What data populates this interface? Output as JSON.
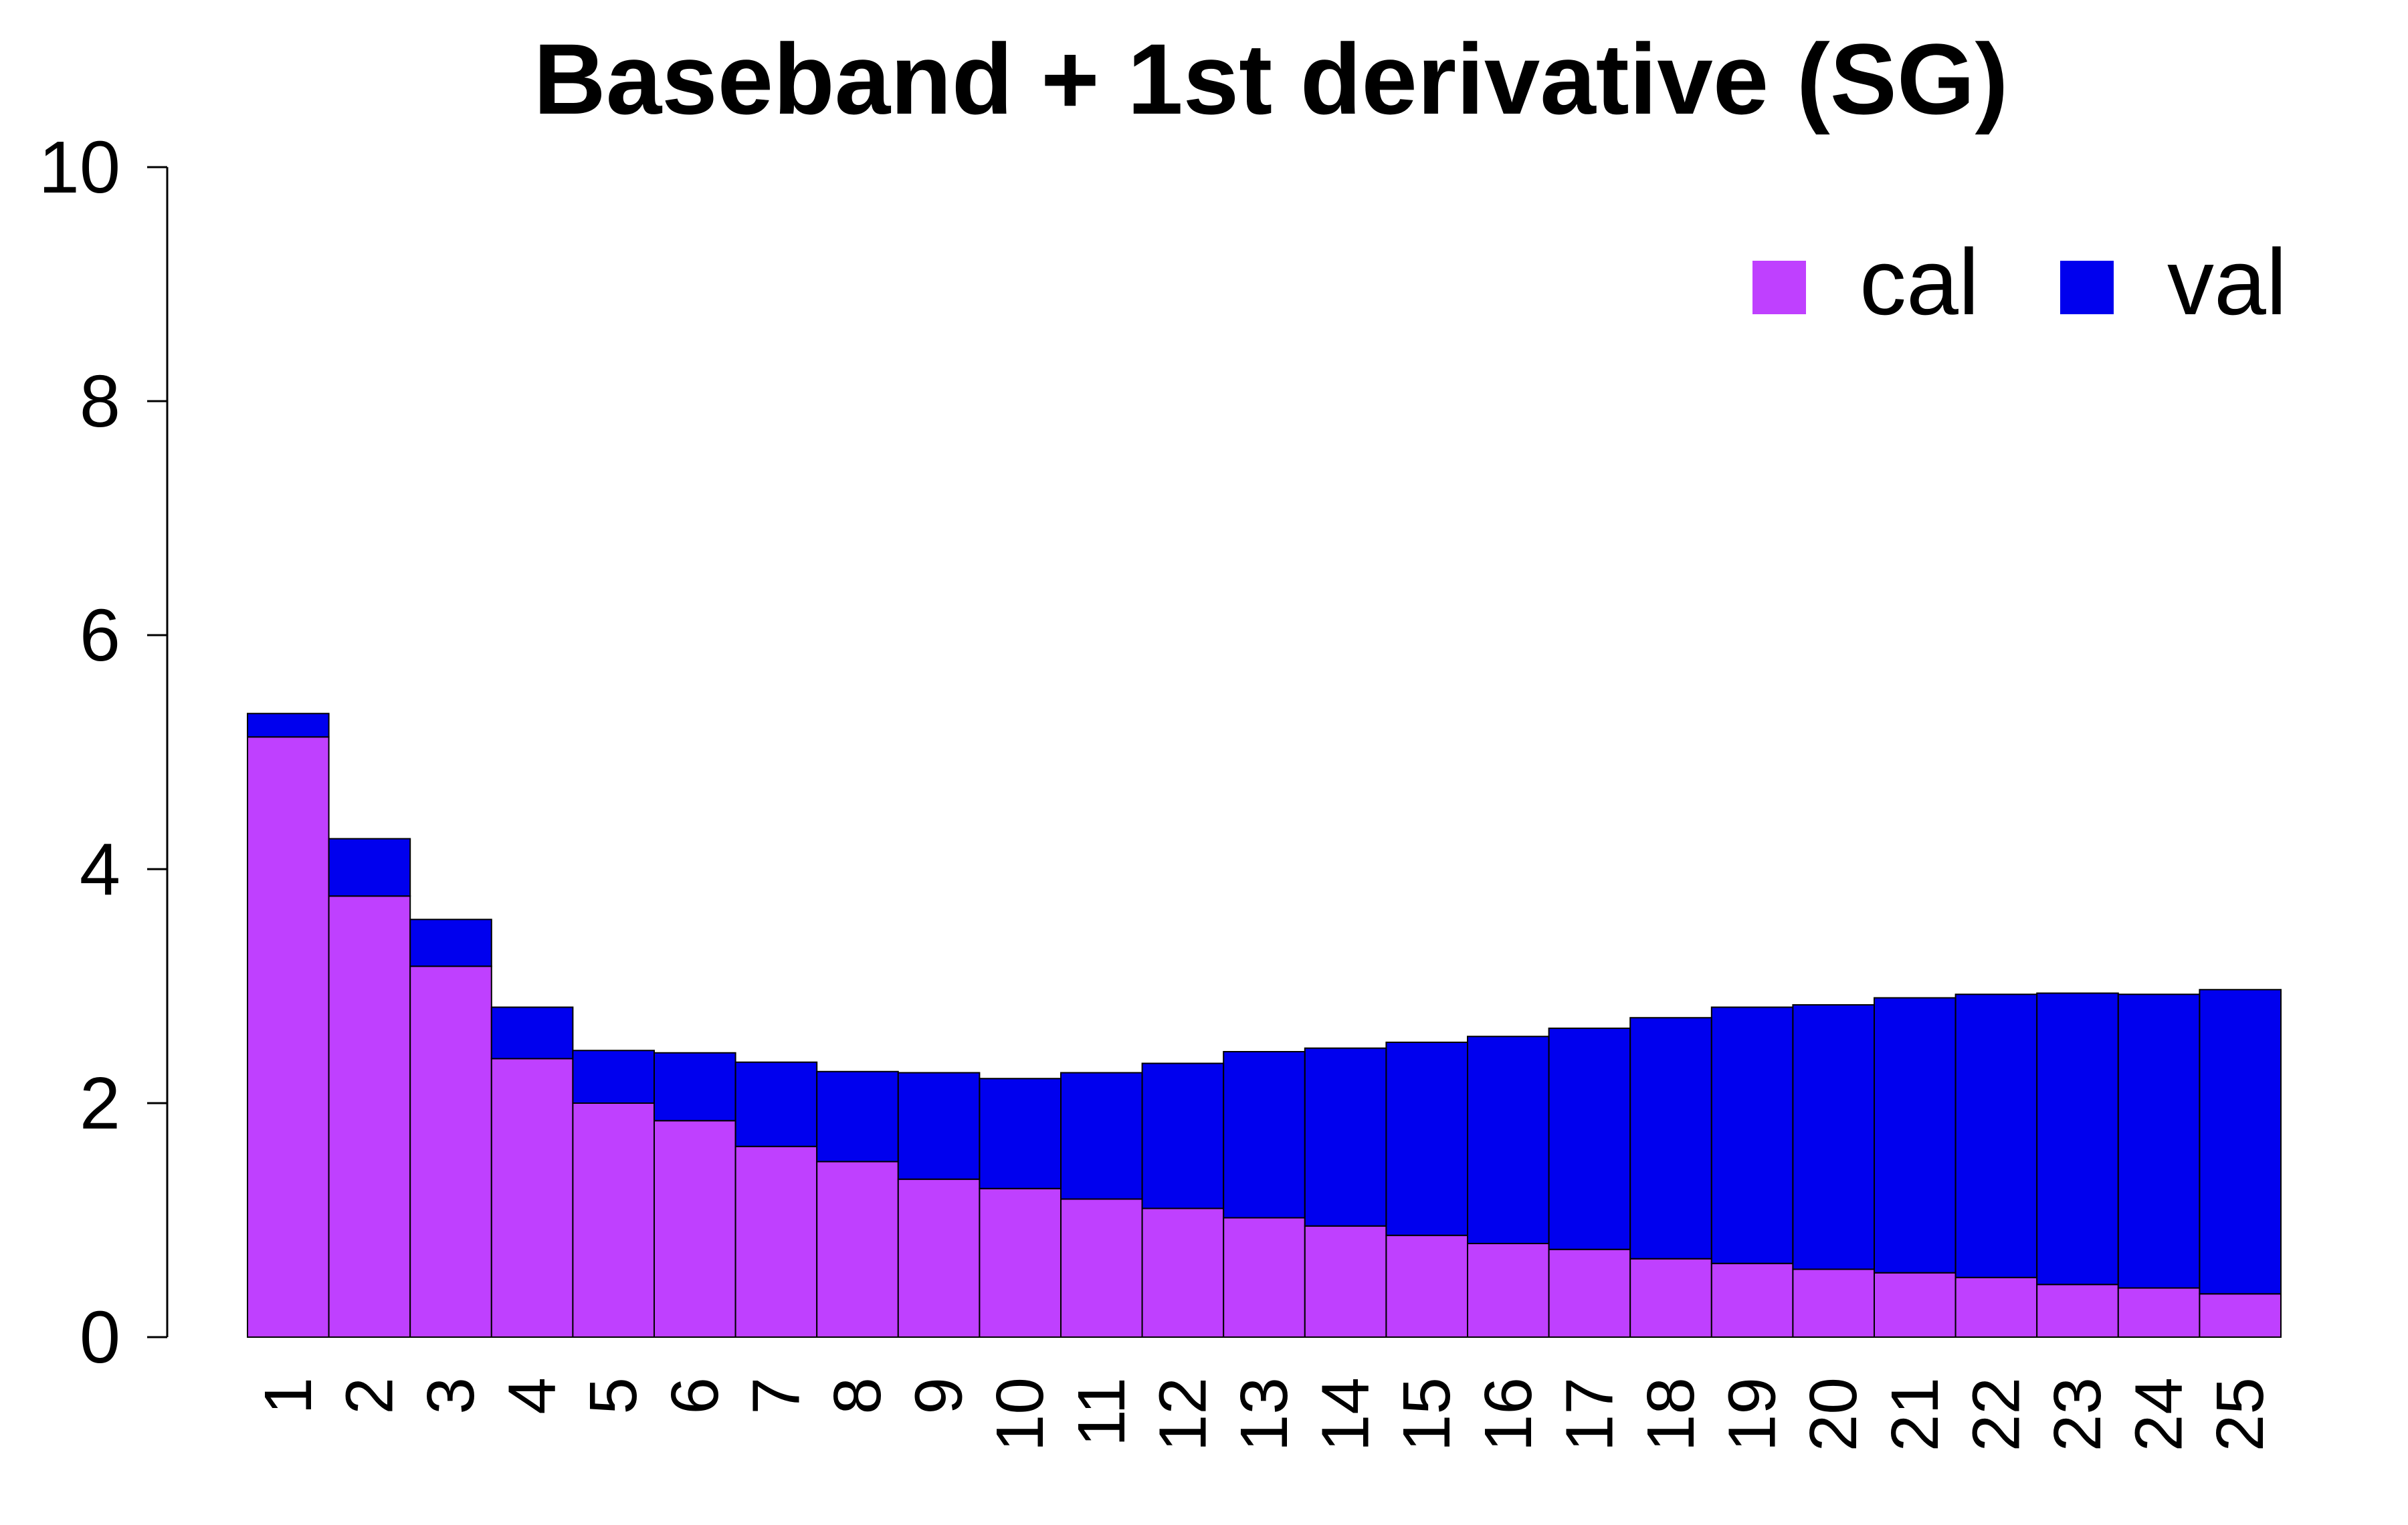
{
  "chart_data": {
    "type": "bar",
    "stacked": true,
    "title": "Baseband + 1st derivative (SG)",
    "xlabel": "",
    "ylabel": "",
    "ylim": [
      0,
      10
    ],
    "yticks": [
      "0",
      "2",
      "4",
      "6",
      "8",
      "10"
    ],
    "categories": [
      "1",
      "2",
      "3",
      "4",
      "5",
      "6",
      "7",
      "8",
      "9",
      "10",
      "11",
      "12",
      "13",
      "14",
      "15",
      "16",
      "17",
      "18",
      "19",
      "20",
      "21",
      "22",
      "23",
      "24",
      "25"
    ],
    "series": [
      {
        "name": "cal",
        "color": "#BF40FF",
        "values": [
          5.13,
          3.77,
          3.17,
          2.38,
          2.0,
          1.85,
          1.63,
          1.5,
          1.35,
          1.27,
          1.18,
          1.1,
          1.02,
          0.95,
          0.87,
          0.8,
          0.75,
          0.67,
          0.63,
          0.58,
          0.55,
          0.51,
          0.45,
          0.42,
          0.37
        ]
      },
      {
        "name": "val",
        "color": "#0000EE",
        "values": [
          0.2,
          0.49,
          0.4,
          0.44,
          0.45,
          0.58,
          0.72,
          0.77,
          0.91,
          0.94,
          1.08,
          1.24,
          1.42,
          1.52,
          1.65,
          1.77,
          1.89,
          2.06,
          2.19,
          2.26,
          2.35,
          2.42,
          2.49,
          2.51,
          2.6
        ]
      }
    ],
    "legend": {
      "position": "top-right",
      "entries": [
        "cal",
        "val"
      ]
    },
    "grid": false
  }
}
